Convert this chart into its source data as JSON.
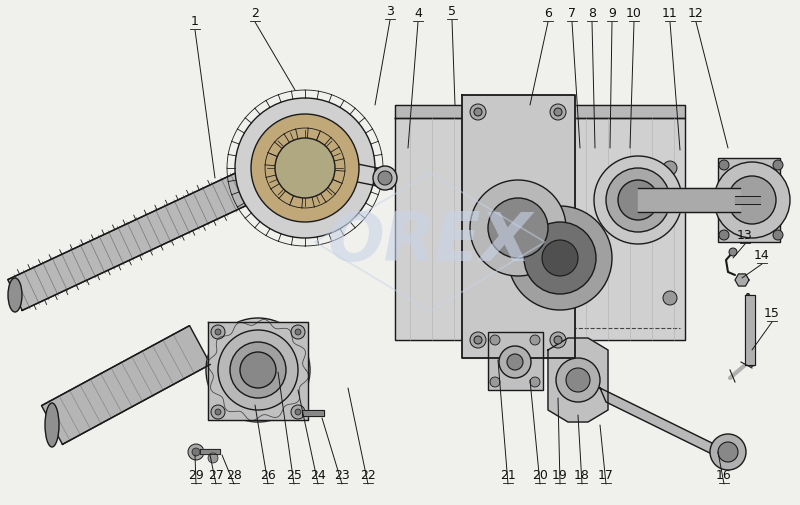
{
  "bg_color": "#f0f0ec",
  "watermark": "OREX",
  "watermark_color": "#c8d4e8",
  "line_color": "#1a1a1a",
  "label_color": "#111111",
  "figsize": [
    8.0,
    5.05
  ],
  "dpi": 100,
  "annotations": [
    [
      "1",
      195,
      28,
      215,
      178
    ],
    [
      "2",
      255,
      20,
      295,
      90
    ],
    [
      "3",
      390,
      18,
      375,
      105
    ],
    [
      "4",
      418,
      20,
      408,
      148
    ],
    [
      "5",
      452,
      18,
      455,
      105
    ],
    [
      "6",
      548,
      20,
      530,
      105
    ],
    [
      "7",
      572,
      20,
      580,
      148
    ],
    [
      "8",
      592,
      20,
      595,
      148
    ],
    [
      "9",
      612,
      20,
      610,
      148
    ],
    [
      "10",
      634,
      20,
      630,
      148
    ],
    [
      "11",
      670,
      20,
      680,
      150
    ],
    [
      "12",
      696,
      20,
      728,
      148
    ],
    [
      "13",
      745,
      242,
      733,
      258
    ],
    [
      "14",
      762,
      262,
      742,
      278
    ],
    [
      "15",
      772,
      320,
      752,
      350
    ],
    [
      "16",
      724,
      482,
      718,
      452
    ],
    [
      "17",
      606,
      482,
      600,
      425
    ],
    [
      "18",
      582,
      482,
      578,
      415
    ],
    [
      "19",
      560,
      482,
      558,
      398
    ],
    [
      "20",
      540,
      482,
      530,
      380
    ],
    [
      "21",
      508,
      482,
      498,
      360
    ],
    [
      "22",
      368,
      482,
      348,
      388
    ],
    [
      "23",
      342,
      482,
      322,
      418
    ],
    [
      "24",
      318,
      482,
      298,
      390
    ],
    [
      "25",
      294,
      482,
      278,
      372
    ],
    [
      "26",
      268,
      482,
      255,
      405
    ],
    [
      "27",
      216,
      482,
      210,
      455
    ],
    [
      "28",
      234,
      482,
      222,
      455
    ],
    [
      "29",
      196,
      482,
      195,
      455
    ]
  ]
}
